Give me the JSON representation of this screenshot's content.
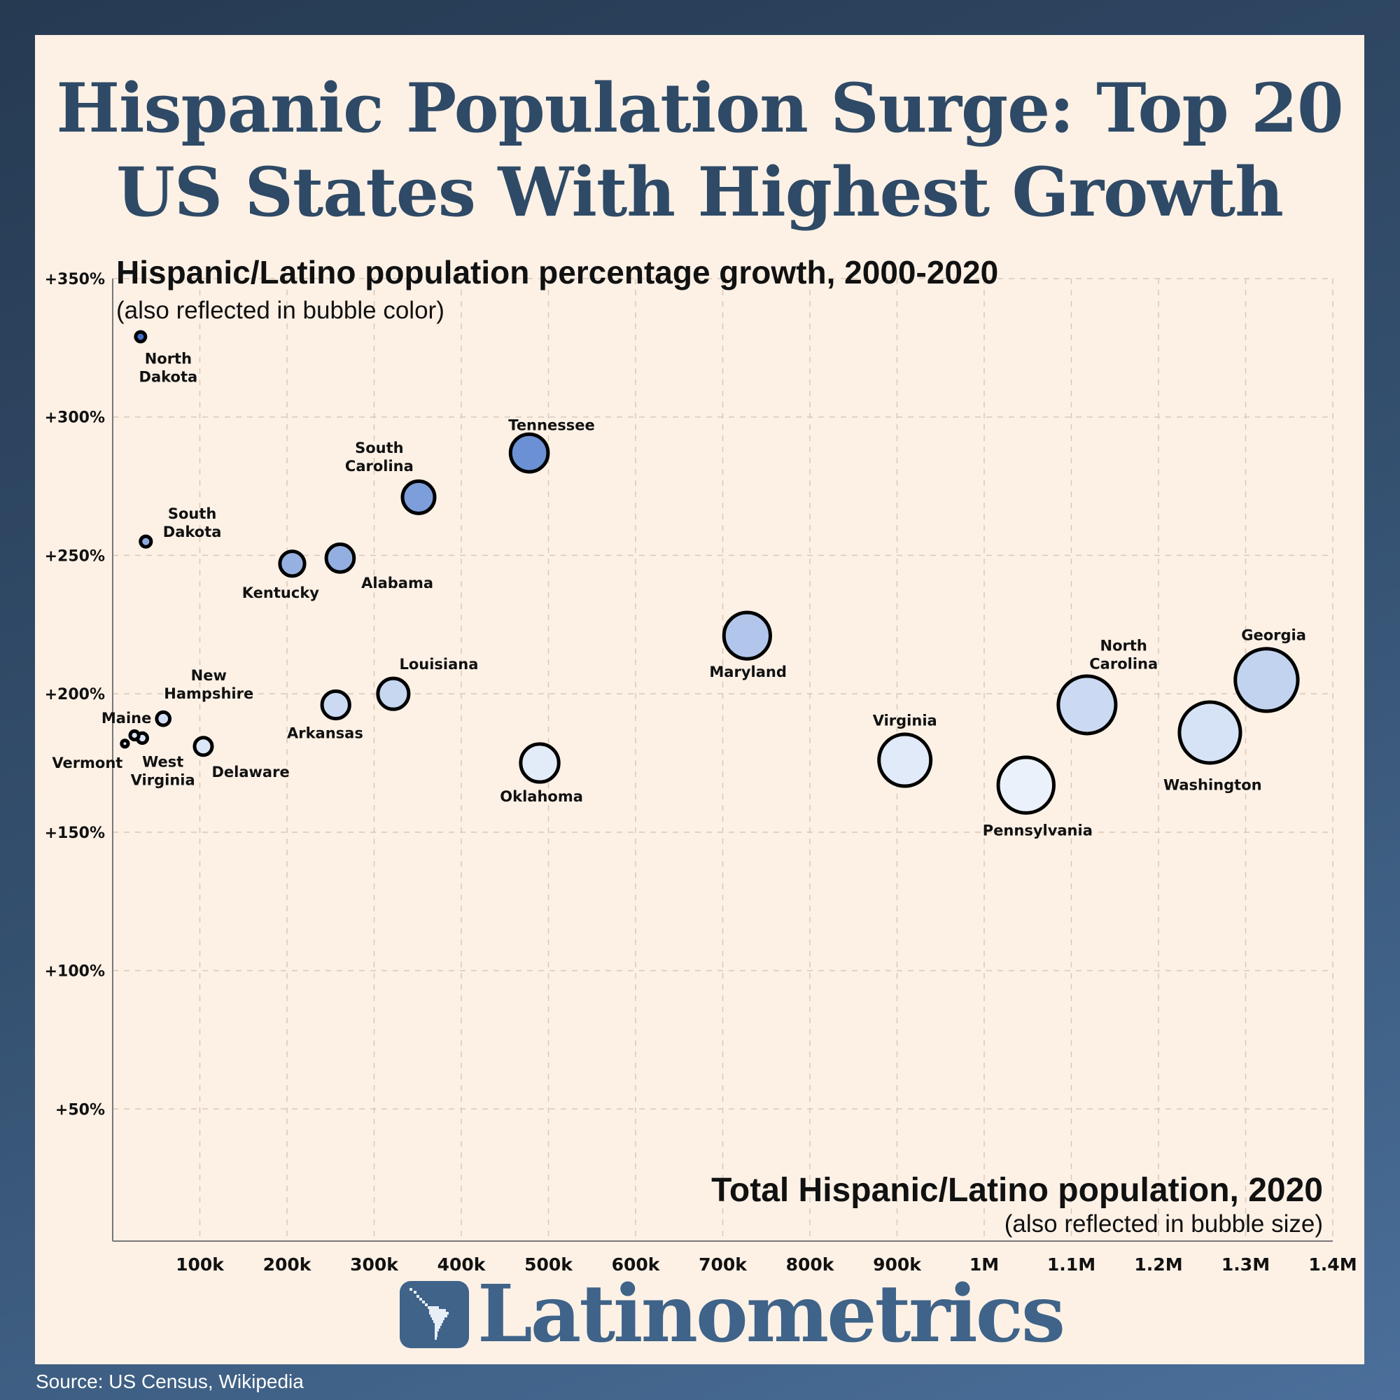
{
  "title": {
    "line1": "Hispanic Population Surge: Top 20",
    "line2": "US States With Highest Growth"
  },
  "brand": {
    "name": "Latinometrics",
    "icon": "latin-america-map-icon"
  },
  "source": "Source: US Census, Wikipedia",
  "colors": {
    "light": "#eaf1fb",
    "dark": "#3f6fc7",
    "border": "#000000",
    "background": "#fdf1e6",
    "grid": "#d8c8b8"
  },
  "chart_data": {
    "type": "scatter",
    "title": "",
    "ylabel": "Hispanic/Latino population percentage growth, 2000-2020",
    "ylabel_note": "(also reflected in bubble color)",
    "xlabel": "Total Hispanic/Latino population, 2020",
    "xlabel_note": "(also reflected in bubble size)",
    "xlim": [
      0,
      1400000
    ],
    "ylim": [
      0,
      350
    ],
    "grid": true,
    "x_ticks": [
      {
        "value": 100000,
        "label": "100k"
      },
      {
        "value": 200000,
        "label": "200k"
      },
      {
        "value": 300000,
        "label": "300k"
      },
      {
        "value": 400000,
        "label": "400k"
      },
      {
        "value": 500000,
        "label": "500k"
      },
      {
        "value": 600000,
        "label": "600k"
      },
      {
        "value": 700000,
        "label": "700k"
      },
      {
        "value": 800000,
        "label": "800k"
      },
      {
        "value": 900000,
        "label": "900k"
      },
      {
        "value": 1000000,
        "label": "1M"
      },
      {
        "value": 1100000,
        "label": "1.1M"
      },
      {
        "value": 1200000,
        "label": "1.2M"
      },
      {
        "value": 1300000,
        "label": "1.3M"
      },
      {
        "value": 1400000,
        "label": "1.4M"
      }
    ],
    "y_ticks": [
      {
        "value": 50,
        "label": "+50%"
      },
      {
        "value": 100,
        "label": "+100%"
      },
      {
        "value": 150,
        "label": "+150%"
      },
      {
        "value": 200,
        "label": "+200%"
      },
      {
        "value": 250,
        "label": "+250%"
      },
      {
        "value": 300,
        "label": "+300%"
      },
      {
        "value": 350,
        "label": "+350%"
      }
    ],
    "points": [
      {
        "label": "North\nDakota",
        "x": 32000,
        "y": 329
      },
      {
        "label": "Tennessee",
        "x": 478000,
        "y": 287
      },
      {
        "label": "South\nCarolina",
        "x": 351000,
        "y": 271
      },
      {
        "label": "South\nDakota",
        "x": 38000,
        "y": 255
      },
      {
        "label": "Kentucky",
        "x": 206000,
        "y": 247
      },
      {
        "label": "Alabama",
        "x": 261000,
        "y": 249
      },
      {
        "label": "Maryland",
        "x": 728000,
        "y": 221
      },
      {
        "label": "Louisiana",
        "x": 322000,
        "y": 200
      },
      {
        "label": "Arkansas",
        "x": 256000,
        "y": 196
      },
      {
        "label": "New\nHampshire",
        "x": 58000,
        "y": 191
      },
      {
        "label": "Maine",
        "x": 25000,
        "y": 185
      },
      {
        "label": "West\nVirginia",
        "x": 34000,
        "y": 184
      },
      {
        "label": "Vermont",
        "x": 14000,
        "y": 182
      },
      {
        "label": "Delaware",
        "x": 104000,
        "y": 181
      },
      {
        "label": "Oklahoma",
        "x": 490000,
        "y": 175
      },
      {
        "label": "Virginia",
        "x": 909000,
        "y": 176
      },
      {
        "label": "Pennsylvania",
        "x": 1048000,
        "y": 167
      },
      {
        "label": "North\nCarolina",
        "x": 1118000,
        "y": 196
      },
      {
        "label": "Washington",
        "x": 1259000,
        "y": 186
      },
      {
        "label": "Georgia",
        "x": 1324000,
        "y": 205
      }
    ]
  }
}
